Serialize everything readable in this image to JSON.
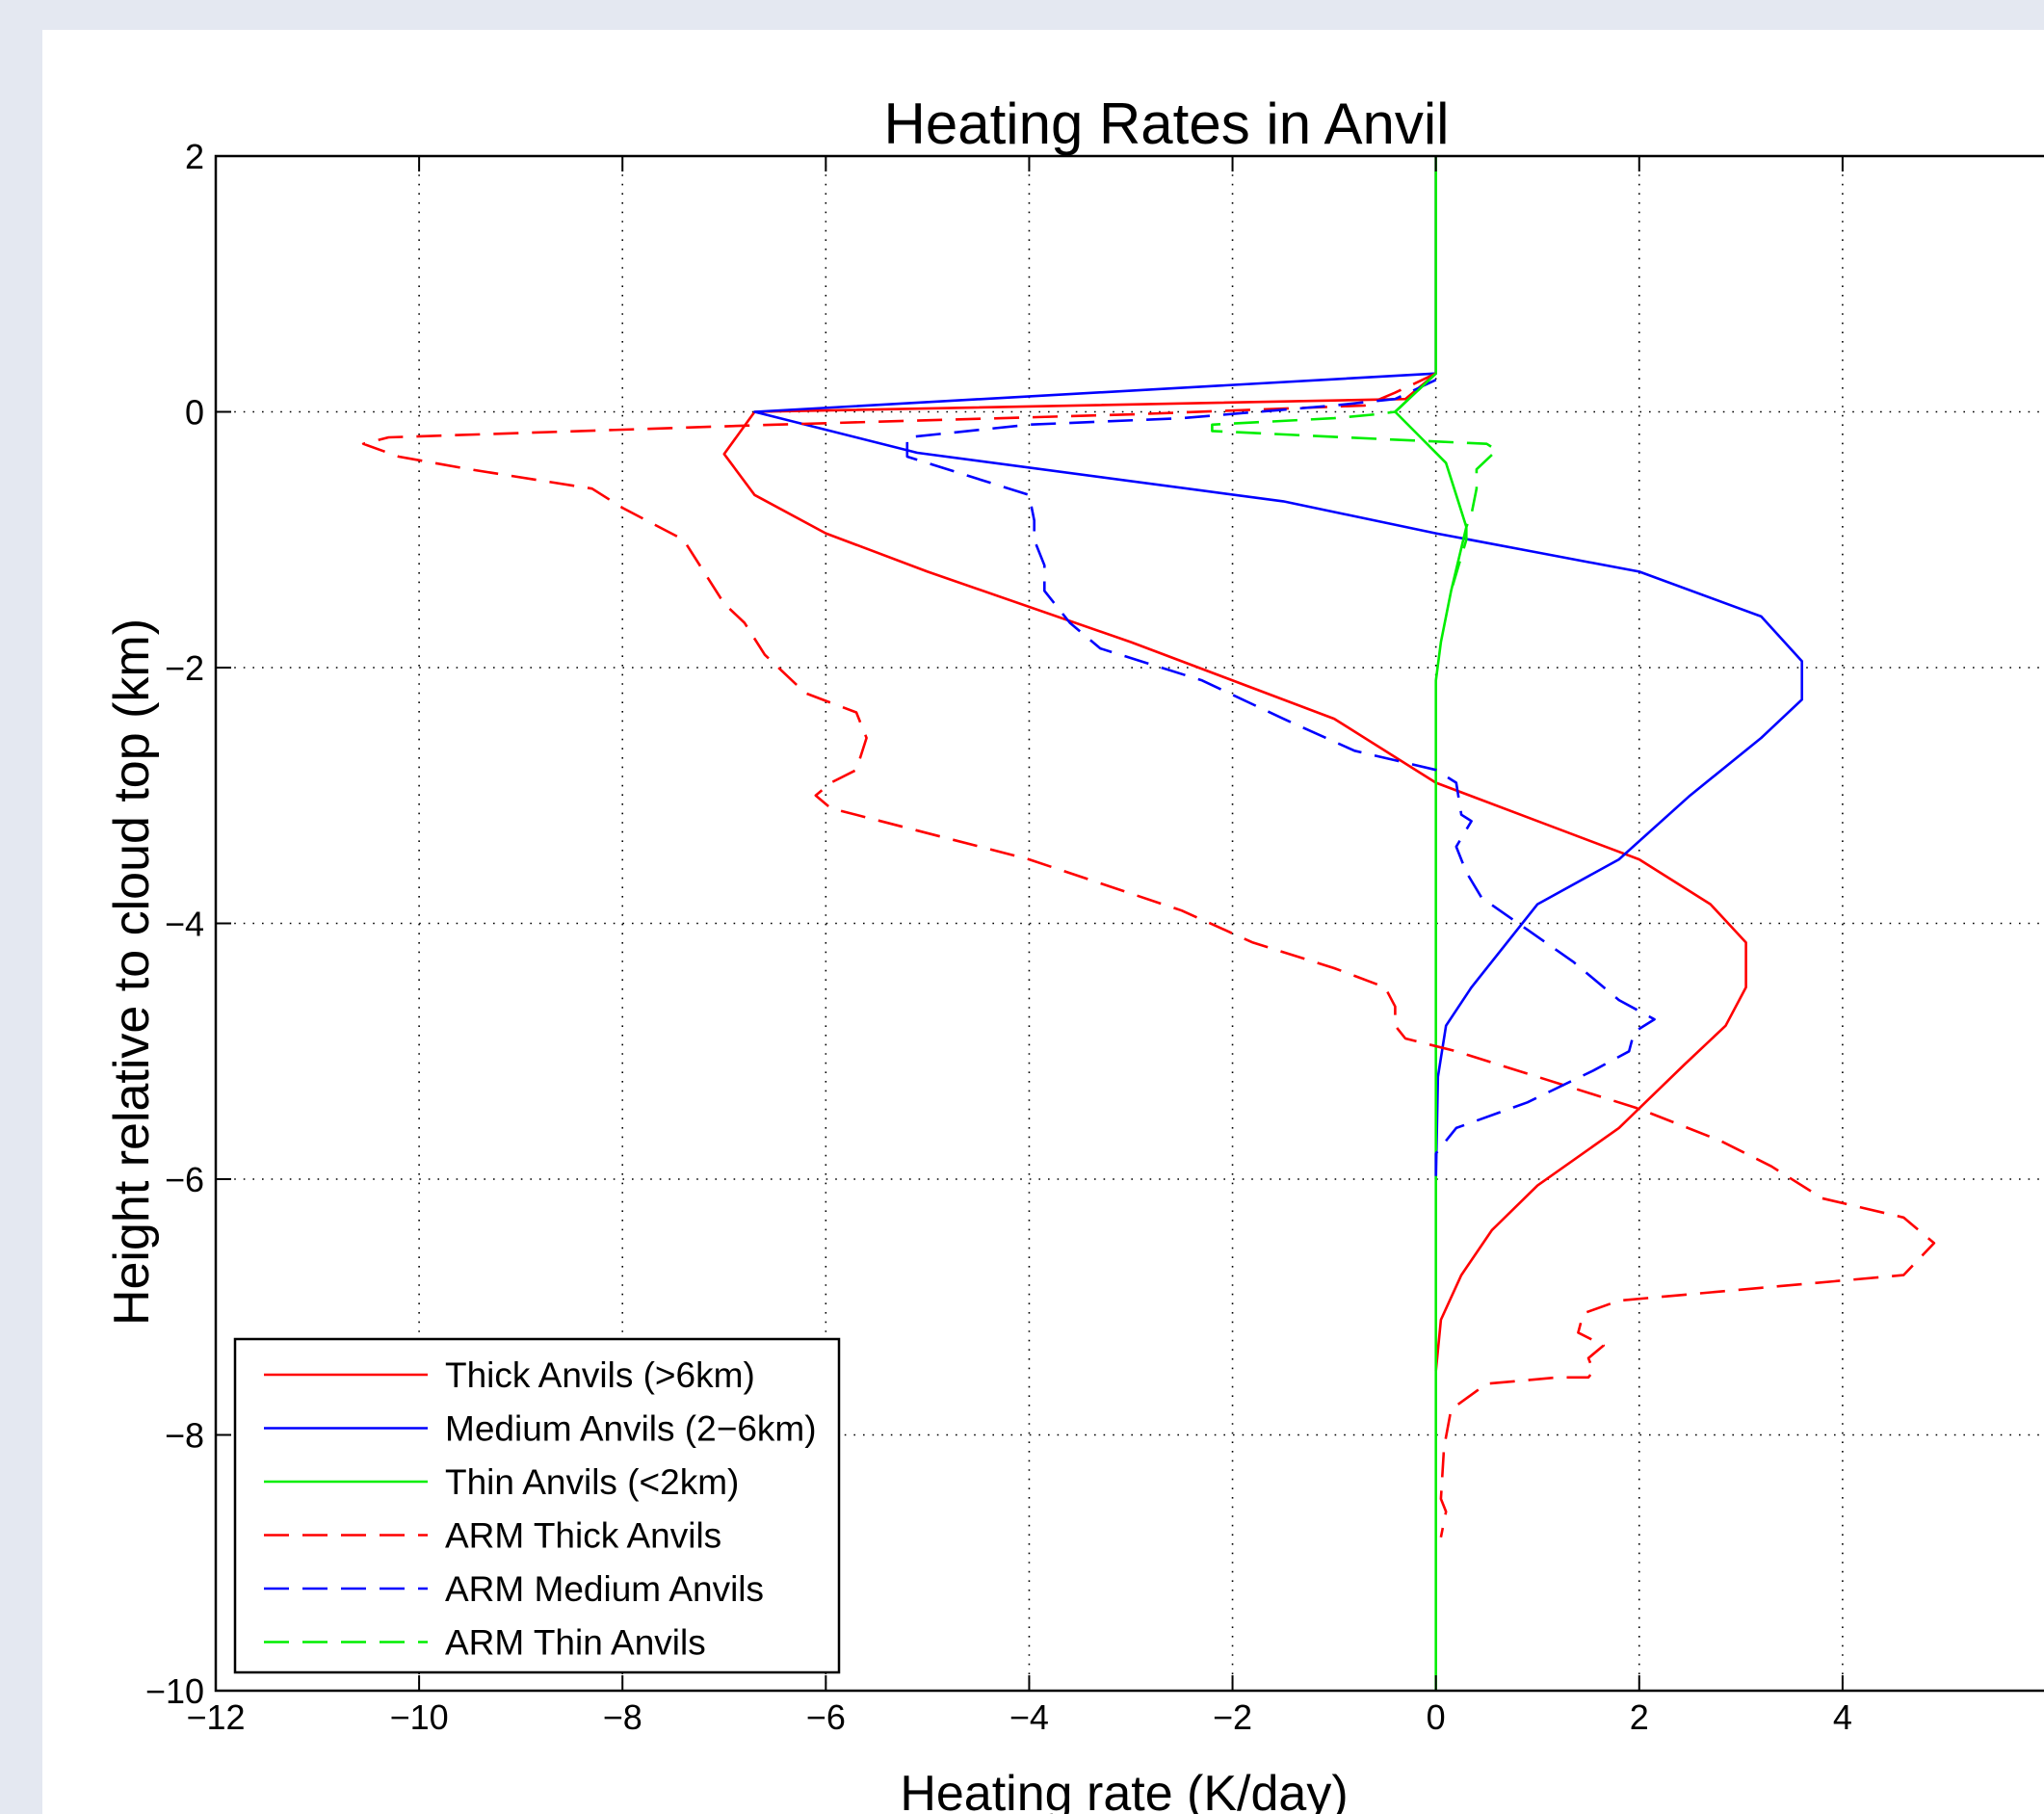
{
  "chart_data": {
    "type": "line",
    "title": "Heating Rates in Anvil",
    "xlabel": "Heating rate (K/day)",
    "ylabel": "Height relative to cloud top (km)",
    "xlim": [
      -12,
      6
    ],
    "ylim": [
      -10,
      2
    ],
    "xticks": [
      -12,
      -10,
      -8,
      -6,
      -4,
      -2,
      0,
      2,
      4
    ],
    "xtick_labels": [
      "−12",
      "−10",
      "−8",
      "−6",
      "−4",
      "−2",
      "0",
      "2",
      "4"
    ],
    "yticks": [
      -10,
      -8,
      -6,
      -4,
      -2,
      0,
      2
    ],
    "ytick_labels": [
      "−10",
      "−8",
      "−6",
      "−4",
      "−2",
      "0",
      "2"
    ],
    "grid": true,
    "legend_position": "bottom-left",
    "series": [
      {
        "name": "Thick Anvils (>6km)",
        "color": "#ff0000",
        "dash": "solid",
        "x": [
          0,
          0,
          -0.3,
          -6.7,
          -7.0,
          -6.7,
          -6.0,
          -5.0,
          -3.0,
          -1.0,
          0,
          1.0,
          2.0,
          2.7,
          3.05,
          3.05,
          2.85,
          2.45,
          1.8,
          1.0,
          0.55,
          0.25,
          0.05,
          0
        ],
        "y": [
          2,
          0.3,
          0.1,
          0,
          -0.33,
          -0.65,
          -0.95,
          -1.25,
          -1.8,
          -2.4,
          -2.9,
          -3.2,
          -3.5,
          -3.85,
          -4.15,
          -4.5,
          -4.8,
          -5.1,
          -5.6,
          -6.05,
          -6.4,
          -6.75,
          -7.1,
          -7.5
        ]
      },
      {
        "name": "Medium Anvils (2−6km)",
        "color": "#0000ff",
        "dash": "solid",
        "x": [
          0,
          0,
          -6.7,
          -5.1,
          -1.5,
          0,
          1.0,
          2.0,
          3.2,
          3.6,
          3.6,
          3.2,
          2.5,
          1.8,
          1.0,
          0.35,
          0.1,
          0.02,
          0
        ],
        "y": [
          2,
          0.3,
          0,
          -0.32,
          -0.7,
          -0.95,
          -1.1,
          -1.25,
          -1.6,
          -1.95,
          -2.25,
          -2.55,
          -3.0,
          -3.5,
          -3.85,
          -4.5,
          -4.8,
          -5.2,
          -6.0
        ]
      },
      {
        "name": "Thin Anvils (<2km)",
        "color": "#00ee00",
        "dash": "solid",
        "x": [
          0,
          0,
          -0.4,
          -0.15,
          0.1,
          0.2,
          0.3,
          0.15,
          0.05,
          0,
          0
        ],
        "y": [
          2,
          0.3,
          0,
          -0.2,
          -0.4,
          -0.65,
          -0.9,
          -1.4,
          -1.8,
          -2.1,
          -10
        ]
      },
      {
        "name": "ARM Thick Anvils",
        "color": "#ff0000",
        "dash": "dashed",
        "x": [
          0,
          -0.4,
          -0.7,
          -3.0,
          -6.5,
          -10.3,
          -10.55,
          -10.2,
          -9.5,
          -8.3,
          -8.0,
          -7.4,
          -7.2,
          -7.0,
          -6.8,
          -6.6,
          -6.2,
          -5.7,
          -5.6,
          -5.7,
          -5.95,
          -6.1,
          -5.95,
          -4.0,
          -2.5,
          -1.8,
          -1.0,
          -0.5,
          -0.4,
          -0.4,
          -0.3,
          0.2,
          1.0,
          2.0,
          2.8,
          3.3,
          3.8,
          4.6,
          4.9,
          4.6,
          3.2,
          1.8,
          1.45,
          1.4,
          1.65,
          1.5,
          1.55,
          1.5,
          1.2,
          0.5,
          0.15,
          0.08,
          0.05,
          0.1,
          0.05
        ],
        "y": [
          0.3,
          0.15,
          0.05,
          -0.02,
          -0.1,
          -0.2,
          -0.25,
          -0.35,
          -0.45,
          -0.6,
          -0.75,
          -1.0,
          -1.25,
          -1.5,
          -1.65,
          -1.9,
          -2.2,
          -2.35,
          -2.55,
          -2.8,
          -2.9,
          -3.0,
          -3.1,
          -3.5,
          -3.9,
          -4.15,
          -4.35,
          -4.5,
          -4.65,
          -4.8,
          -4.9,
          -5.0,
          -5.2,
          -5.45,
          -5.7,
          -5.9,
          -6.15,
          -6.3,
          -6.5,
          -6.75,
          -6.85,
          -6.95,
          -7.05,
          -7.2,
          -7.3,
          -7.4,
          -7.5,
          -7.55,
          -7.55,
          -7.6,
          -7.8,
          -8.1,
          -8.5,
          -8.6,
          -8.8
        ]
      },
      {
        "name": "ARM Medium Anvils",
        "color": "#0000ff",
        "dash": "dashed",
        "x": [
          0,
          -0.4,
          -1.0,
          -2.5,
          -4.0,
          -5.2,
          -5.2,
          -4.6,
          -4.0,
          -3.95,
          -3.95,
          -3.85,
          -3.85,
          -3.6,
          -3.3,
          -2.3,
          -1.5,
          -0.8,
          0,
          0.2,
          0.25,
          0.35,
          0.2,
          0.3,
          0.45,
          0.9,
          1.35,
          1.8,
          2.15,
          1.95,
          1.9,
          1.55,
          0.9,
          0.2,
          0,
          0
        ],
        "y": [
          0.25,
          0.1,
          0.05,
          -0.05,
          -0.1,
          -0.2,
          -0.35,
          -0.5,
          -0.65,
          -0.85,
          -1.0,
          -1.2,
          -1.4,
          -1.65,
          -1.85,
          -2.1,
          -2.4,
          -2.65,
          -2.8,
          -2.9,
          -3.15,
          -3.2,
          -3.4,
          -3.6,
          -3.8,
          -4.05,
          -4.3,
          -4.6,
          -4.75,
          -4.85,
          -5.0,
          -5.15,
          -5.4,
          -5.6,
          -5.8,
          -6.0
        ]
      },
      {
        "name": "ARM Thin Anvils",
        "color": "#00ee00",
        "dash": "dashed",
        "x": [
          0,
          -0.4,
          -0.6,
          -1.0,
          -2.2,
          -2.2,
          -0.9,
          0.5,
          0.6,
          0.4,
          0.4,
          0.35,
          0.3,
          0.3,
          0.15
        ],
        "y": [
          0.3,
          0,
          -0.02,
          -0.05,
          -0.1,
          -0.15,
          -0.2,
          -0.25,
          -0.3,
          -0.45,
          -0.6,
          -0.8,
          -0.9,
          -1.0,
          -1.4
        ]
      }
    ]
  }
}
